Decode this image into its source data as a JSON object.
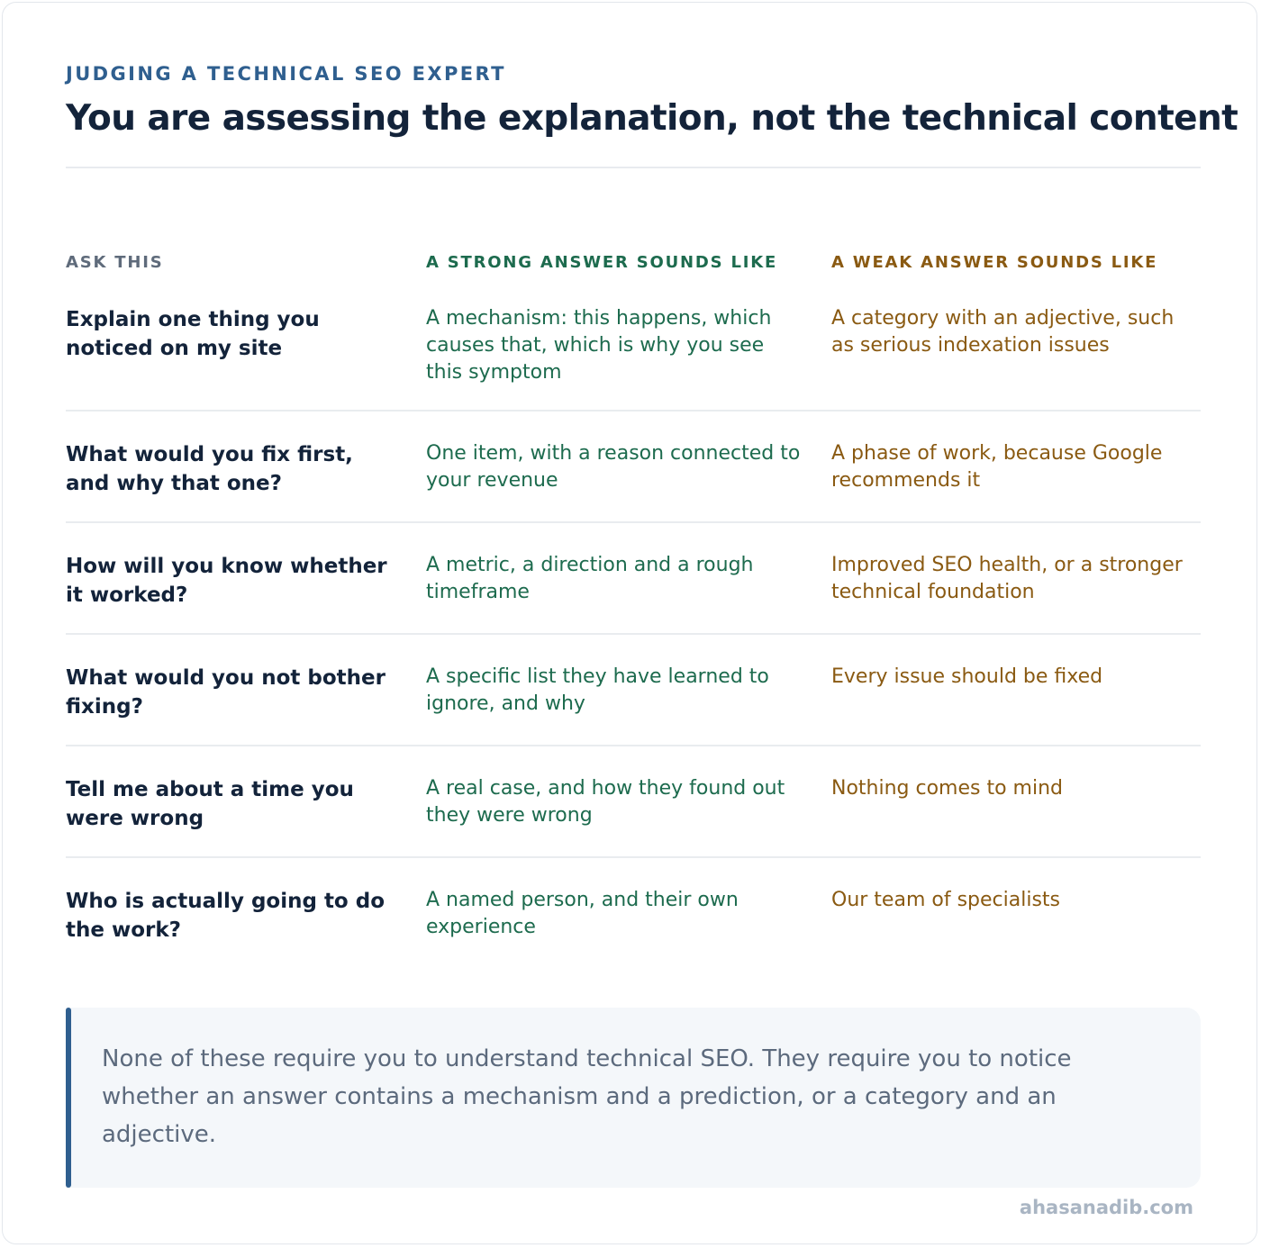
{
  "header": {
    "kicker": "JUDGING A TECHNICAL SEO EXPERT",
    "title": "You are assessing the explanation, not the technical content"
  },
  "table": {
    "columns": {
      "ask": "ASK THIS",
      "strong": "A STRONG ANSWER SOUNDS LIKE",
      "weak": "A WEAK ANSWER SOUNDS LIKE"
    },
    "rows": [
      {
        "question": "Explain one thing you noticed on my site",
        "strong": "A mechanism: this happens, which causes that, which is why you see this symptom",
        "weak": "A category with an adjective, such as serious indexation issues"
      },
      {
        "question": "What would you fix first, and why that one?",
        "strong": "One item, with a reason connected to your revenue",
        "weak": "A phase of work, because Google recommends it"
      },
      {
        "question": "How will you know whether it worked?",
        "strong": "A metric, a direction and a rough timeframe",
        "weak": "Improved SEO health, or a stronger technical foundation"
      },
      {
        "question": "What would you not bother fixing?",
        "strong": "A specific list they have learned to ignore, and why",
        "weak": "Every issue should be fixed"
      },
      {
        "question": "Tell me about a time you were wrong",
        "strong": "A real case, and how they found out they were wrong",
        "weak": "Nothing comes to mind"
      },
      {
        "question": "Who is actually going to do the work?",
        "strong": "A named person, and their own experience",
        "weak": "Our team of specialists"
      }
    ]
  },
  "note": {
    "text": "None of these require you to understand technical SEO. They require you to notice whether an answer contains a mechanism and a prediction, or a category and an adjective."
  },
  "footer": {
    "site": "ahasanadib.com"
  },
  "colors": {
    "accent_blue": "#2f5f8f",
    "strong_green": "#1d6b4e",
    "weak_amber": "#8a5a12",
    "heading_navy": "#13233a"
  }
}
